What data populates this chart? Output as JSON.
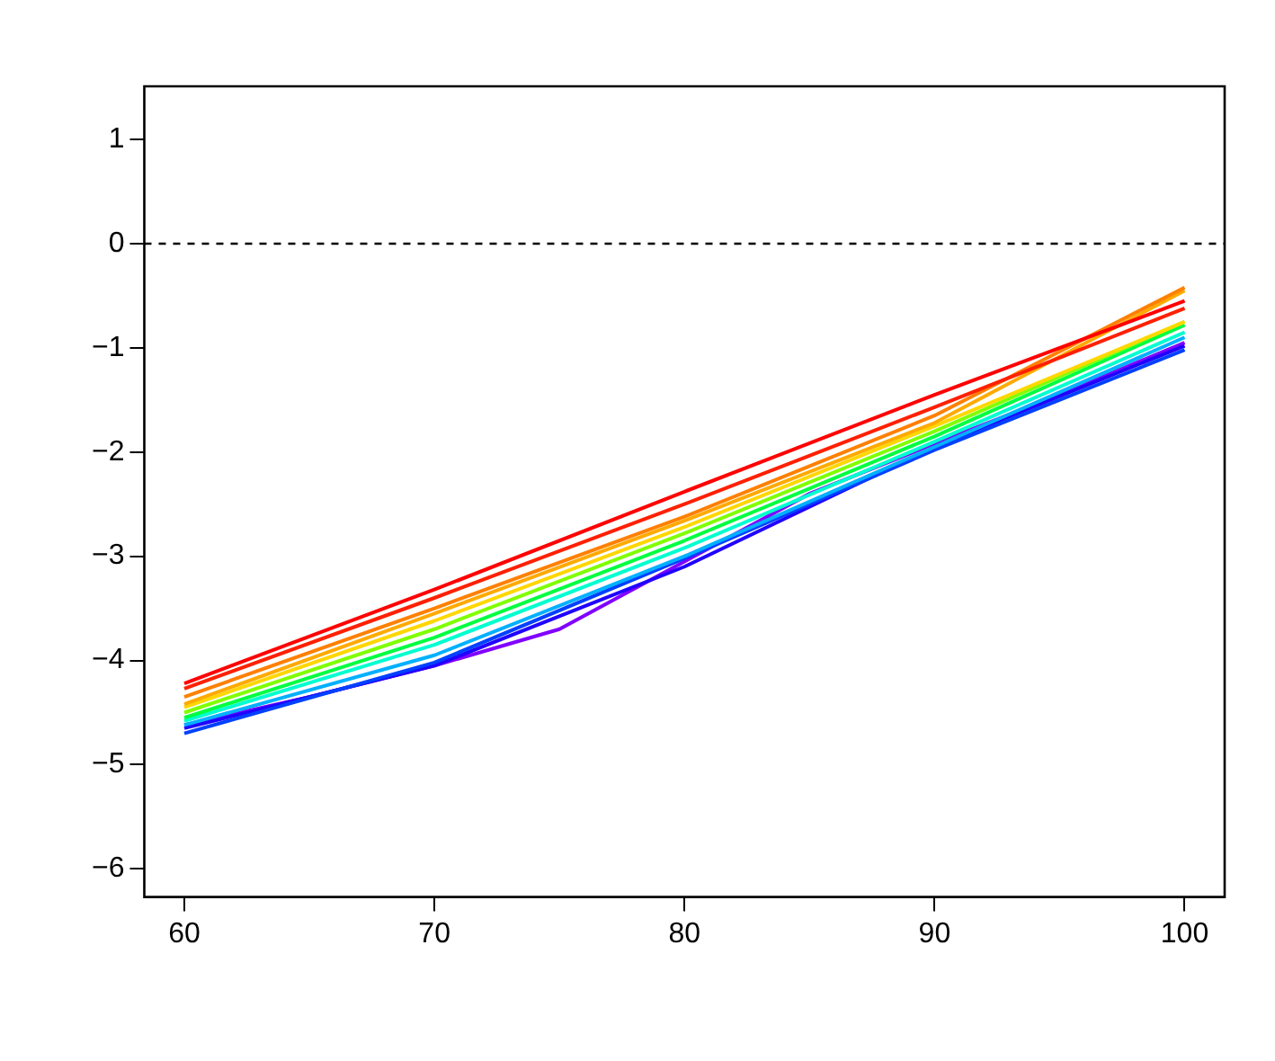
{
  "chart_data": {
    "type": "line",
    "x": [
      60,
      70,
      80,
      90,
      100
    ],
    "xlim": [
      58.4,
      101.6
    ],
    "ylim": [
      -6.27,
      1.51
    ],
    "xticks": [
      60,
      70,
      80,
      90,
      100
    ],
    "yticks": [
      -6,
      -5,
      -4,
      -3,
      -2,
      -1,
      0,
      1
    ],
    "marker": "none",
    "line_style": "solid",
    "ref_lines": [
      {
        "axis": "y",
        "value": 0,
        "line_style": "dashed",
        "color": "#000000"
      }
    ],
    "series": [
      {
        "color": "#ff0000",
        "values": [
          -4.22,
          -3.32,
          -2.38,
          -1.45,
          -0.55
        ]
      },
      {
        "color": "#ff2000",
        "values": [
          -4.27,
          -3.4,
          -2.5,
          -1.57,
          -0.62
        ]
      },
      {
        "color": "#ff8000",
        "values": [
          -4.35,
          -3.5,
          -2.62,
          -1.65,
          -0.42
        ]
      },
      {
        "color": "#ffaa00",
        "values": [
          -4.42,
          -3.55,
          -2.66,
          -1.72,
          -0.45
        ]
      },
      {
        "color": "#ffd700",
        "values": [
          -4.45,
          -3.62,
          -2.72,
          -1.75,
          -0.75
        ]
      },
      {
        "color": "#80ff00",
        "values": [
          -4.5,
          -3.7,
          -2.78,
          -1.8,
          -0.75
        ]
      },
      {
        "color": "#00ff40",
        "values": [
          -4.55,
          -3.78,
          -2.85,
          -1.85,
          -0.78
        ]
      },
      {
        "color": "#00ffd0",
        "values": [
          -4.58,
          -3.85,
          -2.92,
          -1.9,
          -0.85
        ]
      },
      {
        "color": "#00b0ff",
        "values": [
          -4.62,
          -3.95,
          -3.0,
          -1.95,
          -0.9
        ]
      },
      {
        "color": "#0040ff",
        "values": [
          -4.7,
          -4.02,
          -3.02,
          -1.98,
          -1.02
        ]
      },
      {
        "color": "#2000ff",
        "values": [
          -4.65,
          -4.05,
          -3.1,
          -1.95,
          -0.98
        ]
      },
      {
        "color": "#8000ff",
        "x": [
          60,
          65,
          70,
          75,
          80,
          85,
          90,
          95,
          100
        ],
        "values": [
          -4.62,
          -4.35,
          -4.05,
          -3.7,
          -3.05,
          -2.4,
          -1.92,
          -1.45,
          -0.95
        ]
      }
    ]
  }
}
